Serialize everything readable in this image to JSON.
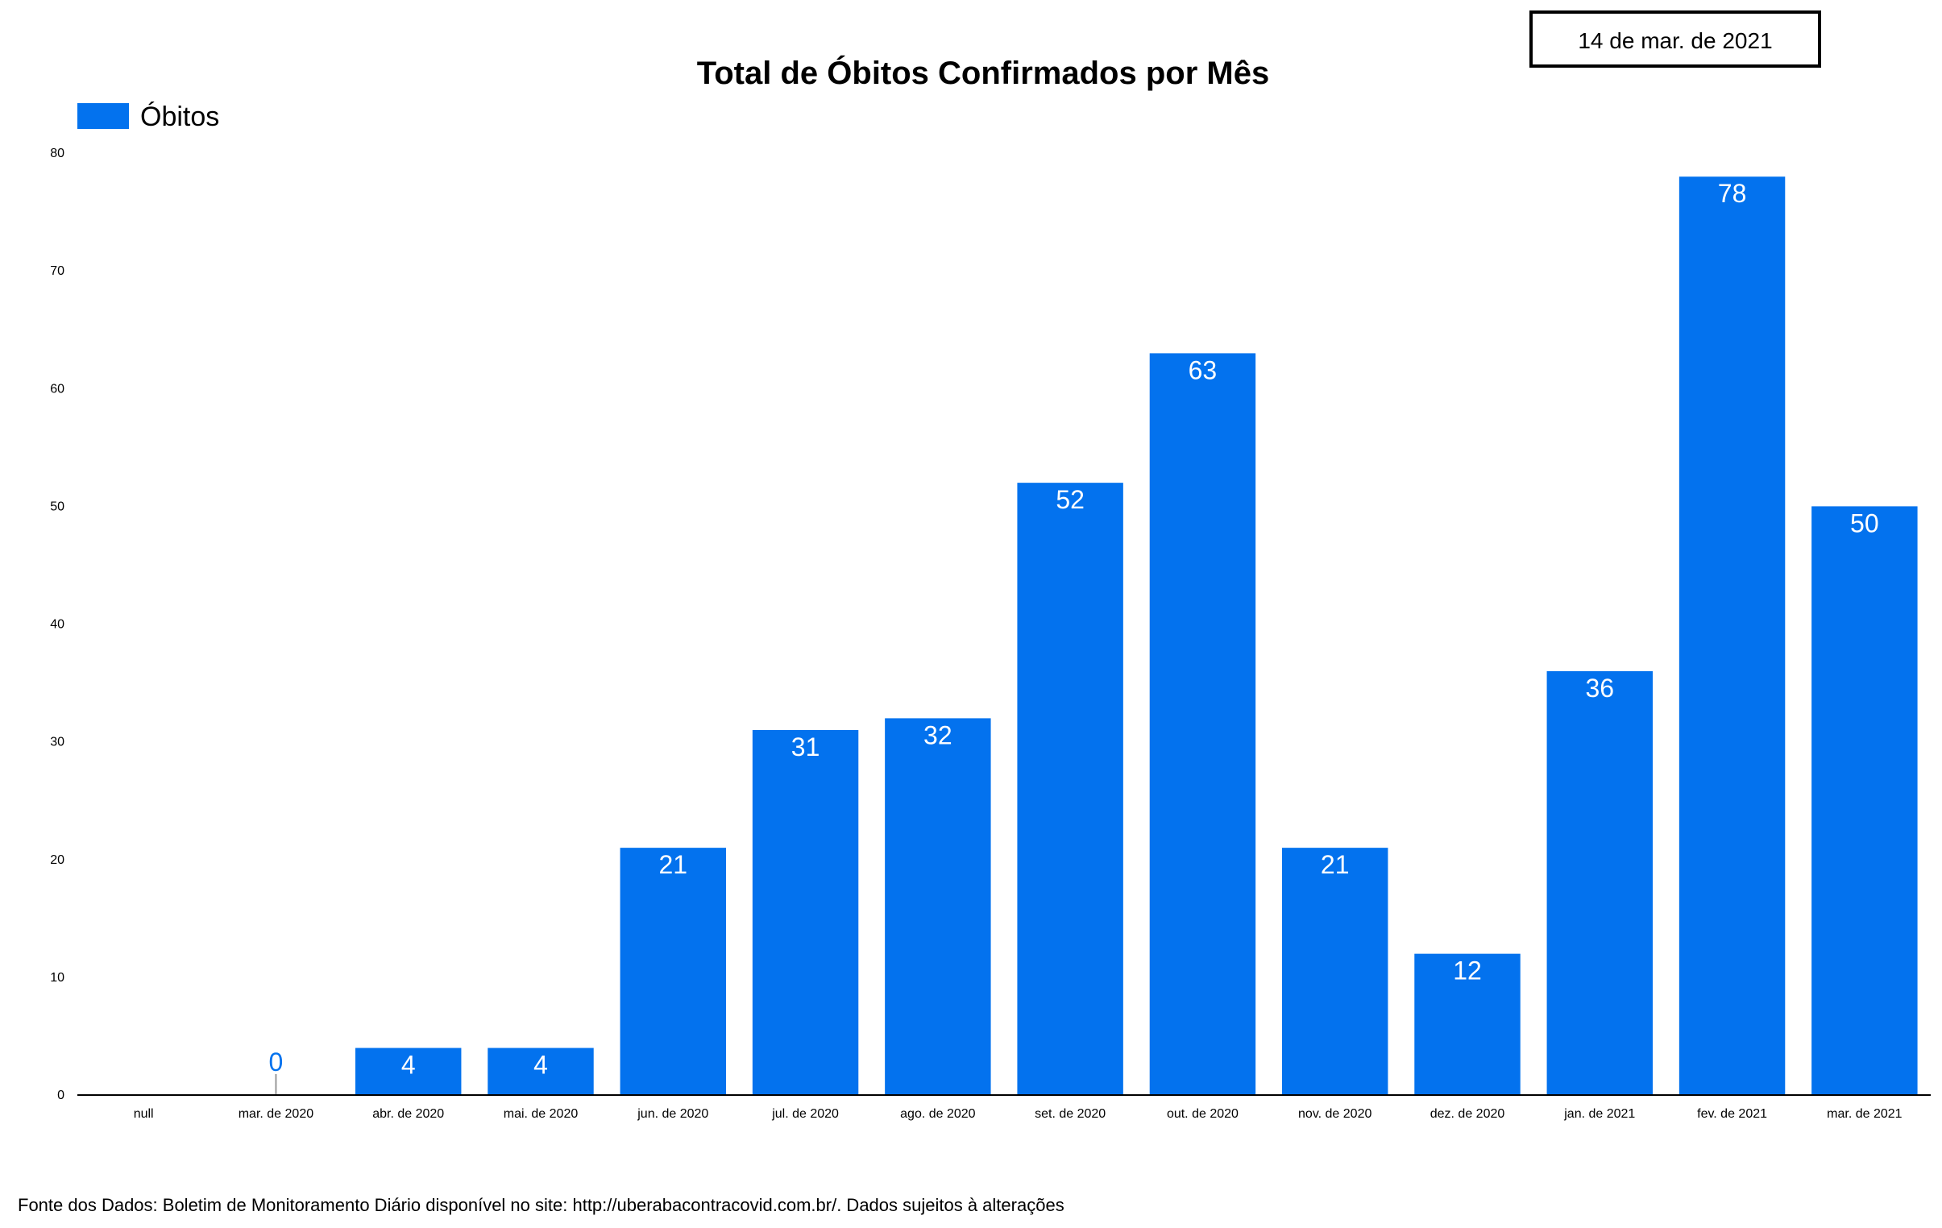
{
  "date_badge": "14 de mar. de 2021",
  "footer_text": "Fonte dos Dados: Boletim de Monitoramento Diário disponível no site: http://uberabacontracovid.com.br/. Dados sujeitos à alterações",
  "colors": {
    "bar": "#0372ee",
    "axis": "#000000"
  },
  "chart_data": {
    "type": "bar",
    "title": "Total de Óbitos Confirmados por Mês",
    "legend": {
      "position": "top-left",
      "entries": [
        "Óbitos"
      ]
    },
    "categories": [
      "null",
      "mar. de 2020",
      "abr. de 2020",
      "mai. de 2020",
      "jun. de 2020",
      "jul. de 2020",
      "ago. de 2020",
      "set. de 2020",
      "out. de 2020",
      "nov. de 2020",
      "dez. de 2020",
      "jan. de 2021",
      "fev. de 2021",
      "mar. de 2021"
    ],
    "series": [
      {
        "name": "Óbitos",
        "values": [
          null,
          0,
          4,
          4,
          21,
          31,
          32,
          52,
          63,
          21,
          12,
          36,
          78,
          50
        ]
      }
    ],
    "yticks": [
      0,
      10,
      20,
      30,
      40,
      50,
      60,
      70,
      80
    ],
    "ylim": [
      0,
      80
    ],
    "grid": false,
    "xlabel": "",
    "ylabel": ""
  }
}
